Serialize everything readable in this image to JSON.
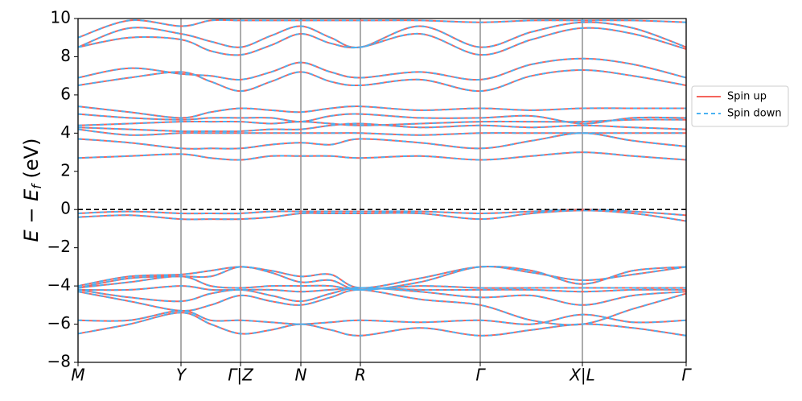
{
  "chart_data": {
    "type": "band_structure",
    "ylabel": [
      "E − E",
      "f",
      " (eV)"
    ],
    "x": [
      0,
      0.64,
      1.28,
      1.65,
      2.02,
      2.4,
      2.77,
      3.14,
      3.51,
      4.25,
      5.0,
      5.64,
      6.27,
      6.9,
      7.56
    ],
    "xlim": [
      0,
      7.56
    ],
    "xticks": [
      {
        "value": 0,
        "label": "M"
      },
      {
        "value": 1.28,
        "label": "Y"
      },
      {
        "value": 2.02,
        "label": "Γ|Z"
      },
      {
        "value": 2.77,
        "label": "N"
      },
      {
        "value": 3.51,
        "label": "R"
      },
      {
        "value": 5.0,
        "label": "Γ"
      },
      {
        "value": 6.27,
        "label": "X|L"
      },
      {
        "value": 7.56,
        "label": "Γ"
      }
    ],
    "ylim": [
      -8,
      10
    ],
    "yticks": [
      {
        "value": -8,
        "label": "−8"
      },
      {
        "value": -6,
        "label": "−6"
      },
      {
        "value": -4,
        "label": "−4"
      },
      {
        "value": -2,
        "label": "−2"
      },
      0,
      2,
      4,
      6,
      8,
      10
    ],
    "reference_line": {
      "y": 0,
      "style": "dashed",
      "color": "#000000"
    },
    "kpoint_lines": true,
    "legend_loc": "outside right",
    "series": [
      {
        "name": "Spin up",
        "color": "#f4645c",
        "style": "solid",
        "bands": [
          [
            -0.2,
            -0.1,
            -0.2,
            -0.2,
            -0.2,
            -0.1,
            -0.1,
            -0.1,
            -0.1,
            -0.1,
            -0.2,
            -0.1,
            0.0,
            -0.1,
            -0.3
          ],
          [
            -0.4,
            -0.3,
            -0.5,
            -0.5,
            -0.5,
            -0.4,
            -0.2,
            -0.2,
            -0.2,
            -0.2,
            -0.5,
            -0.2,
            -0.05,
            -0.2,
            -0.6
          ],
          [
            -6.5,
            -6.0,
            -5.4,
            -6.0,
            -6.5,
            -6.3,
            -6.0,
            -6.3,
            -6.6,
            -6.2,
            -6.6,
            -6.3,
            -6.0,
            -6.2,
            -6.6
          ],
          [
            -5.8,
            -5.8,
            -5.3,
            -5.8,
            -5.8,
            -5.9,
            -6.0,
            -5.9,
            -5.8,
            -5.9,
            -5.8,
            -6.0,
            -5.5,
            -5.9,
            -5.8
          ],
          [
            -4.3,
            -4.8,
            -5.3,
            -5.0,
            -4.5,
            -4.8,
            -5.0,
            -4.6,
            -4.2,
            -4.7,
            -5.0,
            -5.8,
            -6.0,
            -5.2,
            -4.4
          ],
          [
            -4.2,
            -4.6,
            -4.8,
            -4.4,
            -4.2,
            -4.5,
            -4.8,
            -4.4,
            -4.1,
            -4.3,
            -4.6,
            -4.5,
            -5.0,
            -4.5,
            -4.3
          ],
          [
            -4.2,
            -4.2,
            -4.0,
            -4.2,
            -4.2,
            -4.2,
            -4.3,
            -4.2,
            -4.1,
            -4.2,
            -4.2,
            -4.2,
            -4.3,
            -4.2,
            -4.2
          ],
          [
            -4.1,
            -3.8,
            -3.5,
            -4.0,
            -4.1,
            -4.0,
            -4.0,
            -4.0,
            -4.2,
            -4.0,
            -4.1,
            -4.1,
            -4.1,
            -4.1,
            -4.1
          ],
          [
            -4.1,
            -3.6,
            -3.5,
            -3.5,
            -3.0,
            -3.3,
            -3.8,
            -3.7,
            -4.2,
            -3.8,
            -3.0,
            -3.3,
            -3.7,
            -3.4,
            -3.0
          ],
          [
            -4.0,
            -3.5,
            -3.4,
            -3.2,
            -3.0,
            -3.2,
            -3.5,
            -3.4,
            -4.1,
            -3.6,
            -3.0,
            -3.2,
            -3.9,
            -3.2,
            -3.0
          ],
          [
            2.7,
            2.8,
            2.9,
            2.7,
            2.6,
            2.8,
            2.8,
            2.8,
            2.7,
            2.8,
            2.6,
            2.8,
            3.0,
            2.8,
            2.6
          ],
          [
            3.7,
            3.5,
            3.2,
            3.2,
            3.2,
            3.4,
            3.5,
            3.4,
            3.7,
            3.5,
            3.2,
            3.6,
            4.0,
            3.6,
            3.3
          ],
          [
            4.2,
            3.9,
            4.0,
            4.0,
            4.0,
            4.0,
            4.0,
            4.0,
            4.0,
            3.9,
            4.0,
            4.0,
            4.0,
            4.0,
            4.0
          ],
          [
            4.3,
            4.2,
            4.1,
            4.1,
            4.1,
            4.2,
            4.2,
            4.4,
            4.5,
            4.3,
            4.4,
            4.3,
            4.4,
            4.3,
            4.2
          ],
          [
            4.4,
            4.5,
            4.6,
            4.6,
            4.6,
            4.5,
            4.6,
            4.5,
            4.4,
            4.5,
            4.6,
            4.6,
            4.6,
            4.7,
            4.7
          ],
          [
            5.0,
            4.8,
            4.7,
            4.8,
            4.8,
            4.8,
            4.6,
            4.9,
            5.0,
            4.8,
            4.8,
            4.9,
            4.5,
            4.8,
            4.8
          ],
          [
            5.4,
            5.1,
            4.8,
            5.1,
            5.3,
            5.2,
            5.1,
            5.3,
            5.4,
            5.2,
            5.3,
            5.2,
            5.3,
            5.3,
            5.3
          ],
          [
            6.5,
            6.9,
            7.2,
            6.7,
            6.2,
            6.7,
            7.2,
            6.7,
            6.5,
            6.8,
            6.2,
            7.0,
            7.3,
            7.0,
            6.5
          ],
          [
            6.9,
            7.4,
            7.1,
            7.0,
            6.8,
            7.2,
            7.7,
            7.2,
            6.9,
            7.2,
            6.8,
            7.6,
            7.9,
            7.6,
            6.9
          ],
          [
            8.5,
            9.0,
            8.9,
            8.3,
            8.1,
            8.6,
            9.2,
            8.7,
            8.5,
            9.2,
            8.1,
            8.9,
            9.5,
            9.2,
            8.4
          ],
          [
            8.5,
            9.5,
            9.2,
            8.8,
            8.5,
            9.1,
            9.6,
            9.0,
            8.5,
            9.6,
            8.5,
            9.3,
            9.8,
            9.5,
            8.5
          ],
          [
            9.0,
            9.9,
            9.6,
            9.9,
            9.9,
            9.9,
            9.9,
            9.9,
            9.9,
            9.9,
            9.8,
            9.9,
            9.9,
            9.9,
            9.8
          ]
        ]
      },
      {
        "name": "Spin down",
        "color": "#4ab2f2",
        "style": "dashed",
        "bands": [
          [
            -0.2,
            -0.1,
            -0.2,
            -0.2,
            -0.2,
            -0.1,
            -0.1,
            -0.1,
            -0.1,
            -0.1,
            -0.2,
            -0.1,
            0.0,
            -0.1,
            -0.3
          ],
          [
            -0.4,
            -0.3,
            -0.5,
            -0.5,
            -0.5,
            -0.4,
            -0.2,
            -0.2,
            -0.2,
            -0.2,
            -0.5,
            -0.2,
            -0.05,
            -0.2,
            -0.6
          ],
          [
            -6.5,
            -6.0,
            -5.4,
            -6.0,
            -6.5,
            -6.3,
            -6.0,
            -6.3,
            -6.6,
            -6.2,
            -6.6,
            -6.3,
            -6.0,
            -6.2,
            -6.6
          ],
          [
            -5.8,
            -5.8,
            -5.3,
            -5.8,
            -5.8,
            -5.9,
            -6.0,
            -5.9,
            -5.8,
            -5.9,
            -5.8,
            -6.0,
            -5.5,
            -5.9,
            -5.8
          ],
          [
            -4.3,
            -4.8,
            -5.3,
            -5.0,
            -4.5,
            -4.8,
            -5.0,
            -4.6,
            -4.2,
            -4.7,
            -5.0,
            -5.8,
            -6.0,
            -5.2,
            -4.4
          ],
          [
            -4.2,
            -4.6,
            -4.8,
            -4.4,
            -4.2,
            -4.5,
            -4.8,
            -4.4,
            -4.1,
            -4.3,
            -4.6,
            -4.5,
            -5.0,
            -4.5,
            -4.3
          ],
          [
            -4.2,
            -4.2,
            -4.0,
            -4.2,
            -4.2,
            -4.2,
            -4.3,
            -4.2,
            -4.1,
            -4.2,
            -4.2,
            -4.2,
            -4.3,
            -4.2,
            -4.2
          ],
          [
            -4.1,
            -3.8,
            -3.5,
            -4.0,
            -4.1,
            -4.0,
            -4.0,
            -4.0,
            -4.2,
            -4.0,
            -4.1,
            -4.1,
            -4.1,
            -4.1,
            -4.1
          ],
          [
            -4.1,
            -3.6,
            -3.5,
            -3.5,
            -3.0,
            -3.3,
            -3.8,
            -3.7,
            -4.2,
            -3.8,
            -3.0,
            -3.3,
            -3.7,
            -3.4,
            -3.0
          ],
          [
            -4.0,
            -3.5,
            -3.4,
            -3.2,
            -3.0,
            -3.2,
            -3.5,
            -3.4,
            -4.1,
            -3.6,
            -3.0,
            -3.2,
            -3.9,
            -3.2,
            -3.0
          ],
          [
            2.7,
            2.8,
            2.9,
            2.7,
            2.6,
            2.8,
            2.8,
            2.8,
            2.7,
            2.8,
            2.6,
            2.8,
            3.0,
            2.8,
            2.6
          ],
          [
            3.7,
            3.5,
            3.2,
            3.2,
            3.2,
            3.4,
            3.5,
            3.4,
            3.7,
            3.5,
            3.2,
            3.6,
            4.0,
            3.6,
            3.3
          ],
          [
            4.2,
            3.9,
            4.0,
            4.0,
            4.0,
            4.0,
            4.0,
            4.0,
            4.0,
            3.9,
            4.0,
            4.0,
            4.0,
            4.0,
            4.0
          ],
          [
            4.3,
            4.2,
            4.1,
            4.1,
            4.1,
            4.2,
            4.2,
            4.4,
            4.5,
            4.3,
            4.4,
            4.3,
            4.4,
            4.3,
            4.2
          ],
          [
            4.4,
            4.5,
            4.6,
            4.6,
            4.6,
            4.5,
            4.6,
            4.5,
            4.4,
            4.5,
            4.6,
            4.6,
            4.6,
            4.7,
            4.7
          ],
          [
            5.0,
            4.8,
            4.7,
            4.8,
            4.8,
            4.8,
            4.6,
            4.9,
            5.0,
            4.8,
            4.8,
            4.9,
            4.5,
            4.8,
            4.8
          ],
          [
            5.4,
            5.1,
            4.8,
            5.1,
            5.3,
            5.2,
            5.1,
            5.3,
            5.4,
            5.2,
            5.3,
            5.2,
            5.3,
            5.3,
            5.3
          ],
          [
            6.5,
            6.9,
            7.2,
            6.7,
            6.2,
            6.7,
            7.2,
            6.7,
            6.5,
            6.8,
            6.2,
            7.0,
            7.3,
            7.0,
            6.5
          ],
          [
            6.9,
            7.4,
            7.1,
            7.0,
            6.8,
            7.2,
            7.7,
            7.2,
            6.9,
            7.2,
            6.8,
            7.6,
            7.9,
            7.6,
            6.9
          ],
          [
            8.5,
            9.0,
            8.9,
            8.3,
            8.1,
            8.6,
            9.2,
            8.7,
            8.5,
            9.2,
            8.1,
            8.9,
            9.5,
            9.2,
            8.4
          ],
          [
            8.5,
            9.5,
            9.2,
            8.8,
            8.5,
            9.1,
            9.6,
            9.0,
            8.5,
            9.6,
            8.5,
            9.3,
            9.8,
            9.5,
            8.5
          ],
          [
            9.0,
            9.9,
            9.6,
            9.9,
            9.9,
            9.9,
            9.9,
            9.9,
            9.9,
            9.9,
            9.8,
            9.9,
            9.9,
            9.9,
            9.8
          ]
        ]
      }
    ]
  }
}
